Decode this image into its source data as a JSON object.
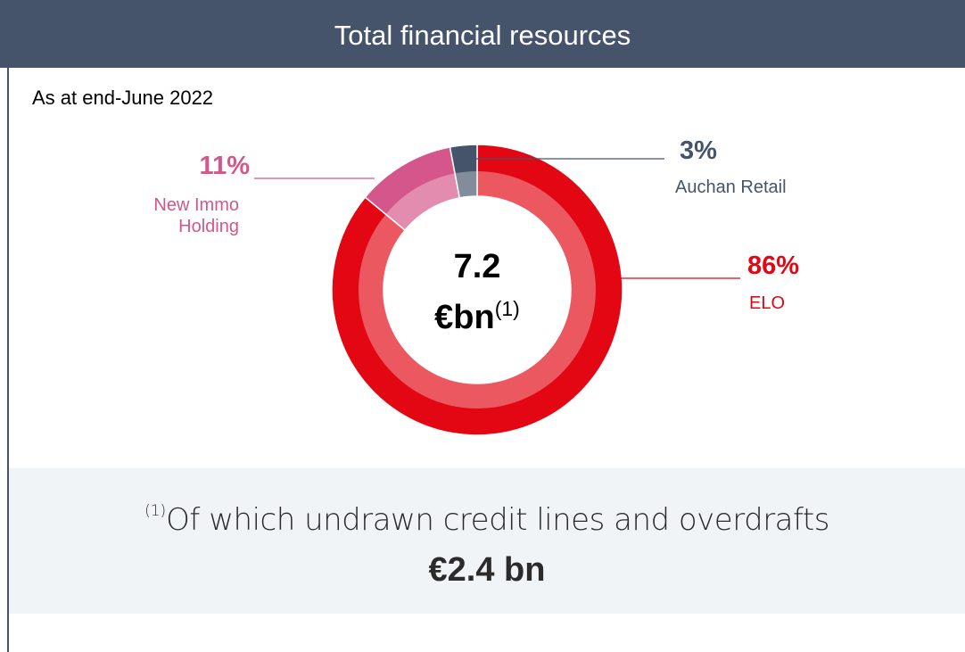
{
  "header": {
    "title": "Total financial resources"
  },
  "subtitle": "As at end-June 2022",
  "chart_data": {
    "type": "pie",
    "categories": [
      "ELO",
      "New Immo Holding",
      "Auchan Retail"
    ],
    "values": [
      86,
      11,
      3
    ],
    "value_labels": [
      "86%",
      "11%",
      "3%"
    ],
    "colors": [
      "#e30613",
      "#d4568a",
      "#46546b"
    ],
    "center_value": "7.2",
    "center_unit": "€bn",
    "center_note": "(1)"
  },
  "footnote": {
    "marker": "(1)",
    "text": "Of which undrawn credit lines and overdrafts",
    "value": "€2.4 bn"
  }
}
